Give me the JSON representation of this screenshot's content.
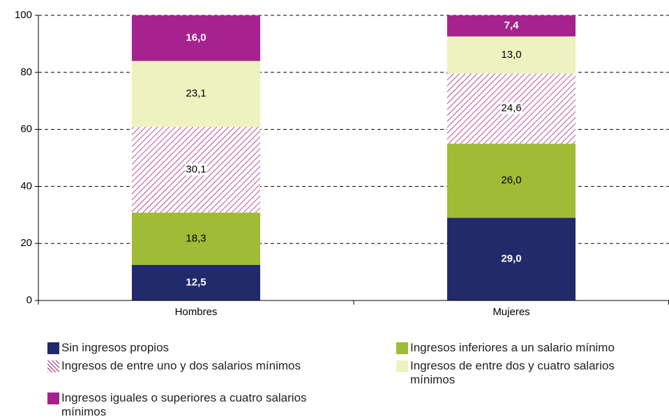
{
  "chart_data": {
    "type": "stacked_bar",
    "categories": [
      "Hombres",
      "Mujeres"
    ],
    "series": [
      {
        "name": "Sin ingresos propios",
        "color": "#222a6b",
        "values": [
          12.5,
          29.0
        ],
        "value_labels": [
          "12,5",
          "29,0"
        ]
      },
      {
        "name": "Ingresos inferiores a un salario mínimo",
        "color": "#a0bb35",
        "values": [
          18.3,
          26.0
        ],
        "value_labels": [
          "18,3",
          "26,0"
        ]
      },
      {
        "name": "Ingresos de entre uno y dos salarios mínimos",
        "color": "#a8257f",
        "pattern": "hatch",
        "values": [
          30.1,
          24.6
        ],
        "value_labels": [
          "30,1",
          "24,6"
        ]
      },
      {
        "name": "Ingresos de entre dos y cuatro salarios mínimos",
        "color": "#eef2c0",
        "values": [
          23.1,
          13.0
        ],
        "value_labels": [
          "23,1",
          "13,0"
        ]
      },
      {
        "name": "Ingresos iguales o superiores a cuatro salarios mínimos",
        "color": "#a6228e",
        "values": [
          16.0,
          7.4
        ],
        "value_labels": [
          "16,0",
          "7,4"
        ]
      }
    ],
    "ylim": [
      0,
      100
    ],
    "yticks": [
      0,
      20,
      40,
      60,
      80,
      100
    ],
    "grid": true,
    "legend": "bottom"
  }
}
